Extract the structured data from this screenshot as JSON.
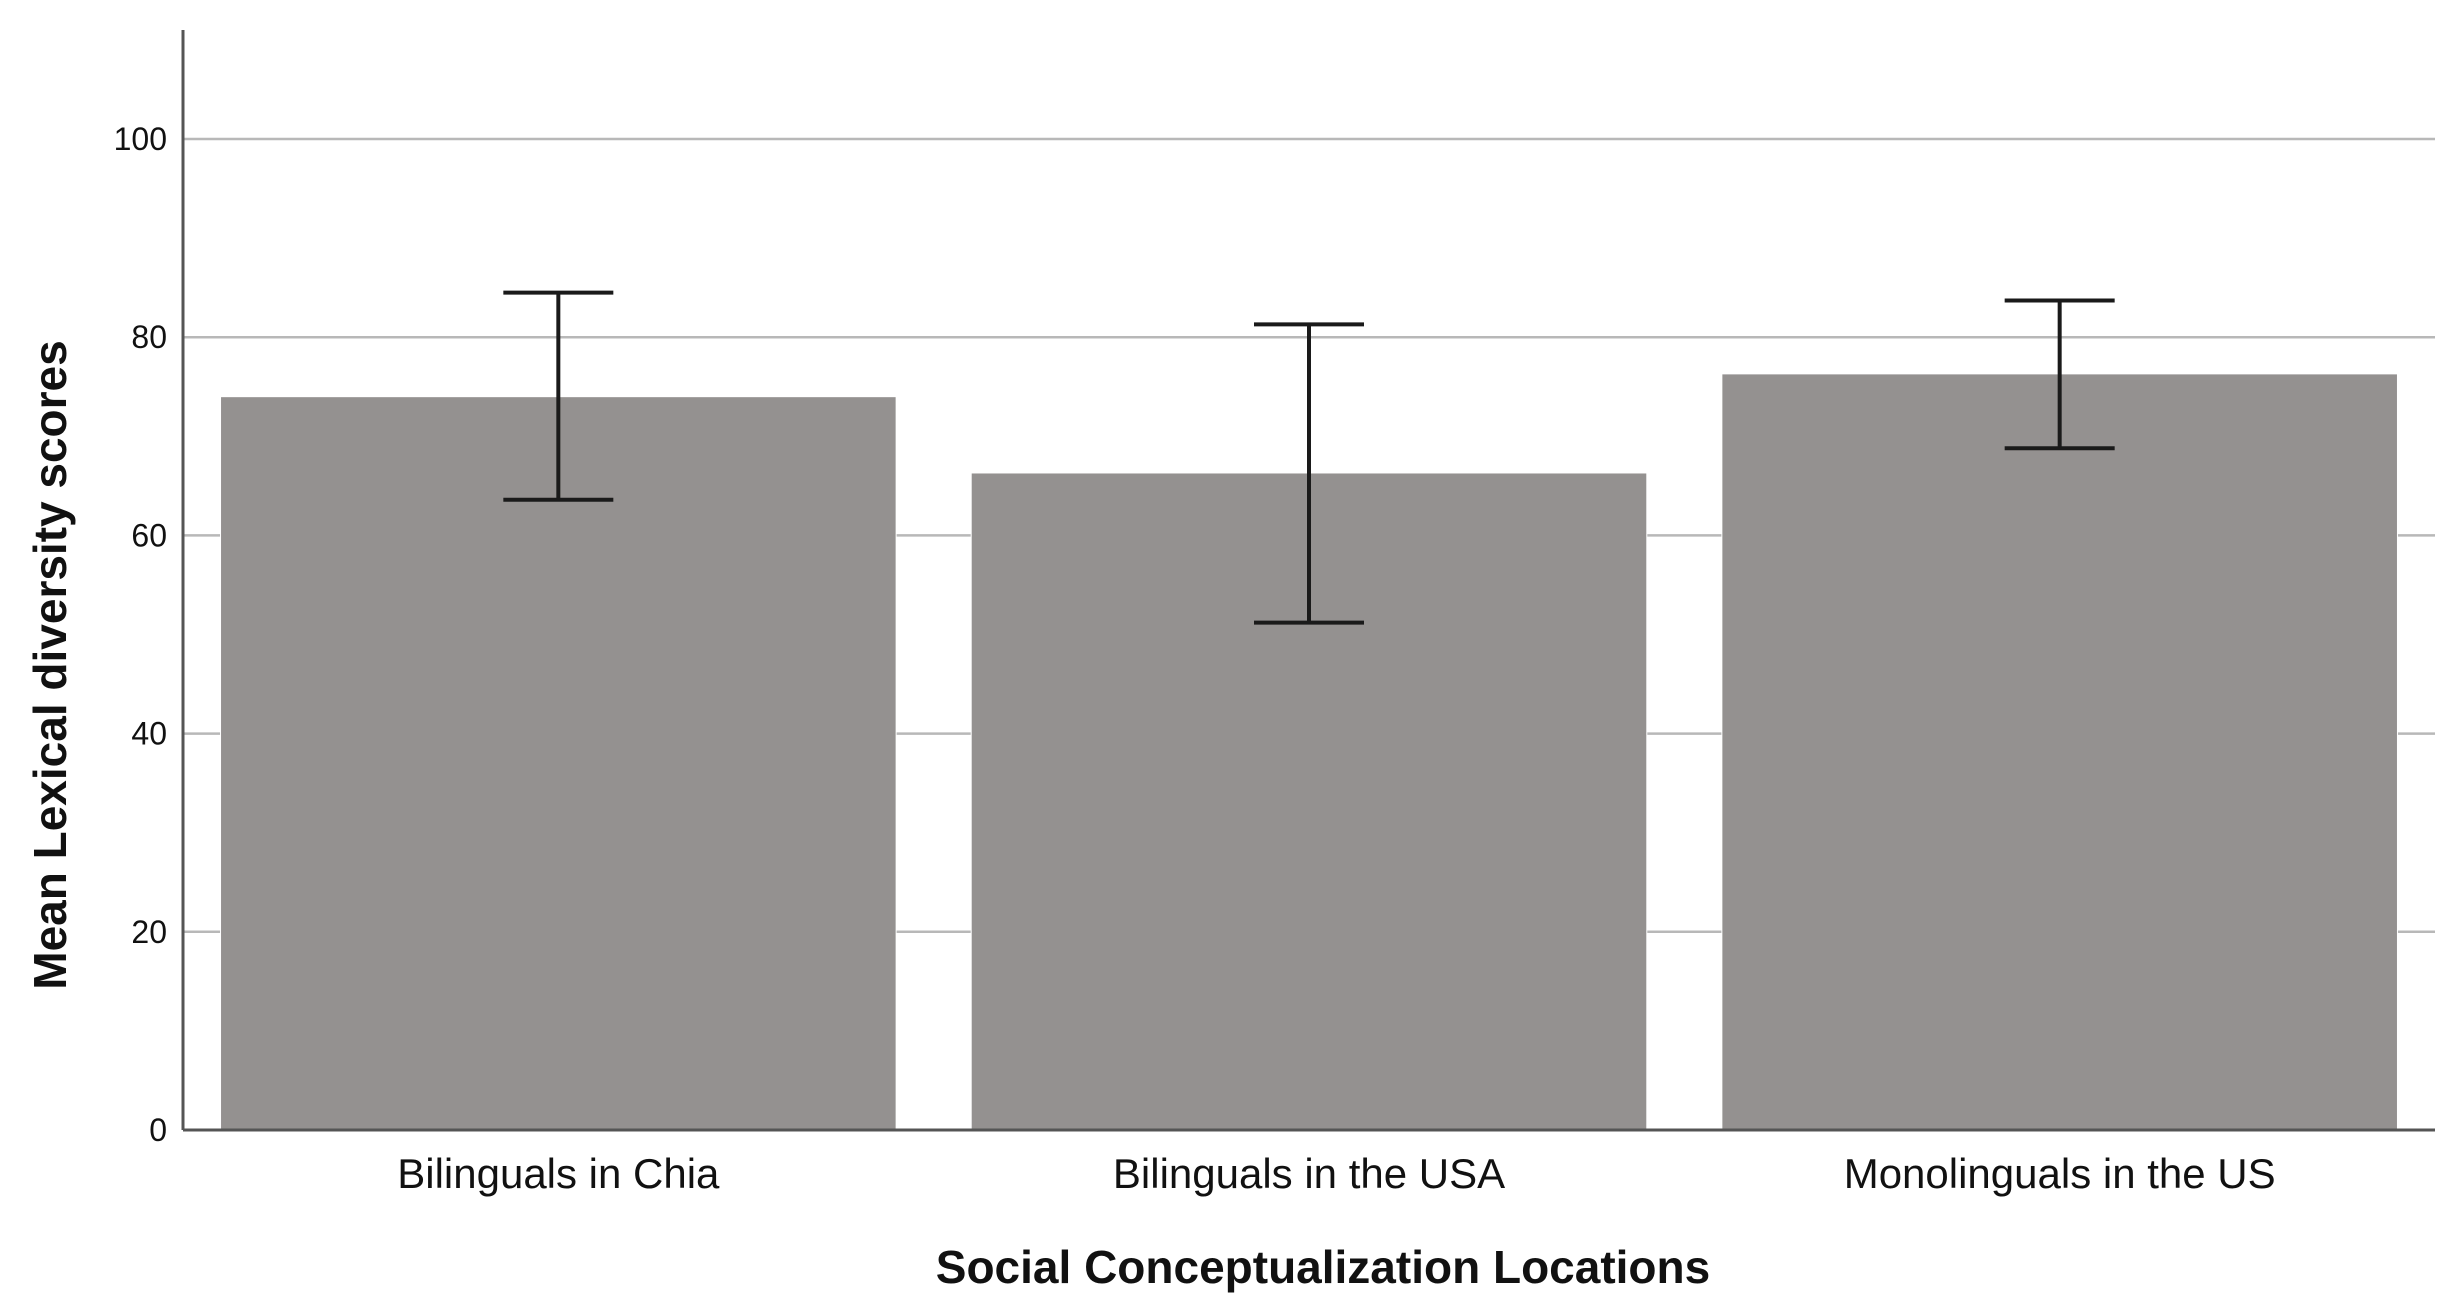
{
  "chart_data": {
    "type": "bar",
    "title": "",
    "xlabel": "Social Conceptualization Locations",
    "ylabel": "Mean Lexical diversity scores",
    "categories": [
      "Bilinguals in Chia",
      "Bilinguals in the USA",
      "Monolinguals in the US"
    ],
    "values": [
      74,
      66.3,
      76.3
    ],
    "error_bars": [
      {
        "low": 63.6,
        "high": 84.5
      },
      {
        "low": 51.2,
        "high": 81.3
      },
      {
        "low": 68.8,
        "high": 83.7
      }
    ],
    "ylim": [
      0,
      111
    ],
    "yticks": [
      0,
      20,
      40,
      60,
      80,
      100
    ],
    "grid": true,
    "legend": "none",
    "colors": {
      "bar": "#949190",
      "error_bar": "#1a1a1a",
      "grid": "#b8b8b8",
      "axis": "#555555",
      "text": "#111111"
    }
  }
}
